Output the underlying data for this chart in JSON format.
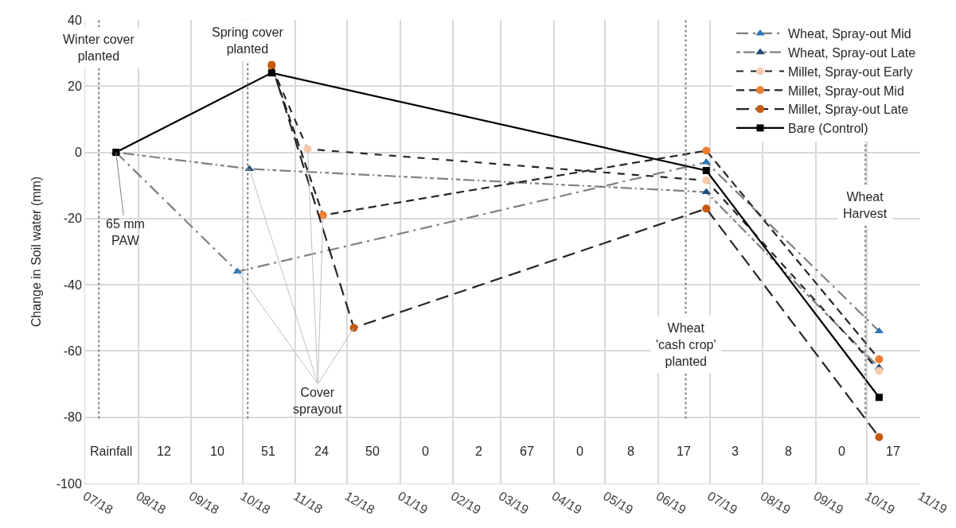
{
  "chart_data": {
    "type": "line",
    "ylabel": "Change in Soil water (mm)",
    "xlim": [
      "2018-07-01",
      "2019-11-01"
    ],
    "xticks": [
      {
        "value": "2018-07-01",
        "label": "07/18"
      },
      {
        "value": "2018-08-01",
        "label": "08/18"
      },
      {
        "value": "2018-09-01",
        "label": "09/18"
      },
      {
        "value": "2018-10-01",
        "label": "10/18"
      },
      {
        "value": "2018-11-01",
        "label": "11/18"
      },
      {
        "value": "2018-12-01",
        "label": "12/18"
      },
      {
        "value": "2019-01-01",
        "label": "01/19"
      },
      {
        "value": "2019-02-01",
        "label": "02/19"
      },
      {
        "value": "2019-03-01",
        "label": "03/19"
      },
      {
        "value": "2019-04-01",
        "label": "04/19"
      },
      {
        "value": "2019-05-01",
        "label": "05/19"
      },
      {
        "value": "2019-06-01",
        "label": "06/19"
      },
      {
        "value": "2019-07-01",
        "label": "07/19"
      },
      {
        "value": "2019-08-01",
        "label": "08/19"
      },
      {
        "value": "2019-09-01",
        "label": "09/19"
      },
      {
        "value": "2019-10-01",
        "label": "10/19"
      },
      {
        "value": "2019-11-01",
        "label": "11/19"
      }
    ],
    "ylim": [
      -100,
      40
    ],
    "yticks": [
      -100,
      -80,
      -60,
      -40,
      -20,
      0,
      20,
      40
    ],
    "grid": true,
    "legend": "top right",
    "series": [
      {
        "name": "Wheat, Spray-out Mid",
        "color": "#2e75b6",
        "marker": "triangle",
        "line_style": "dashed",
        "x": [
          "2018-07-19",
          "2018-09-28",
          "2019-06-29",
          "2019-10-08"
        ],
        "values": [
          0,
          -36,
          -3,
          -54
        ]
      },
      {
        "name": "Wheat, Spray-out Late",
        "color": "#1f4e79",
        "marker": "triangle",
        "line_style": "dashed",
        "x": [
          "2018-07-19",
          "2018-10-05",
          "2019-06-29",
          "2019-10-08"
        ],
        "values": [
          0,
          -5,
          -12,
          -65
        ]
      },
      {
        "name": "Millet, Spray-out Early",
        "color": "#f8cbad",
        "marker": "circle",
        "line_style": "dashed",
        "x": [
          "2018-10-18",
          "2018-11-08",
          "2019-06-29",
          "2019-10-08"
        ],
        "values": [
          26,
          1,
          -8.5,
          -66
        ]
      },
      {
        "name": "Millet, Spray-out Mid",
        "color": "#ed7d31",
        "marker": "circle",
        "line_style": "dashed",
        "x": [
          "2018-10-18",
          "2018-11-17",
          "2019-06-29",
          "2019-10-08"
        ],
        "values": [
          26,
          -19,
          0.5,
          -62.5
        ]
      },
      {
        "name": "Millet, Spray-out Late",
        "color": "#c55a11",
        "marker": "circle",
        "line_style": "dashed",
        "x": [
          "2018-10-18",
          "2018-12-05",
          "2019-06-29",
          "2019-10-08"
        ],
        "values": [
          26.5,
          -53,
          -17,
          -86
        ]
      },
      {
        "name": "Bare (Control)",
        "color": "#000000",
        "marker": "square",
        "line_style": "solid",
        "x": [
          "2018-07-19",
          "2018-10-18",
          "2019-06-29",
          "2019-10-08"
        ],
        "values": [
          0,
          24,
          -5.5,
          -74
        ]
      }
    ],
    "ref_lines": [
      {
        "axis": "x",
        "value": "2018-07-09",
        "label": "Winter cover\nplanted",
        "line_style": "dotted",
        "color": "#808080"
      },
      {
        "axis": "x",
        "value": "2018-10-04",
        "label": "Spring cover\nplanted",
        "line_style": "dotted",
        "color": "#808080"
      },
      {
        "axis": "x",
        "value": "2019-06-17",
        "label": "Wheat\n'cash crop'\nplanted",
        "line_style": "dotted",
        "color": "#808080"
      },
      {
        "axis": "x",
        "value": "2019-09-30",
        "label": "Wheat\nHarvest",
        "line_style": "dotted",
        "color": "#808080"
      }
    ],
    "annotations": [
      {
        "text": "65 mm\nPAW",
        "x": "2018-07-19",
        "y": 0
      },
      {
        "text": "Cover\nsprayout",
        "x": "2018-12-05",
        "y": -53
      },
      "Rainfall",
      "12",
      "10",
      "51",
      "24",
      "50",
      "0",
      "2",
      "67",
      "0",
      "8",
      "17",
      "3",
      "8",
      "0",
      "17"
    ]
  }
}
